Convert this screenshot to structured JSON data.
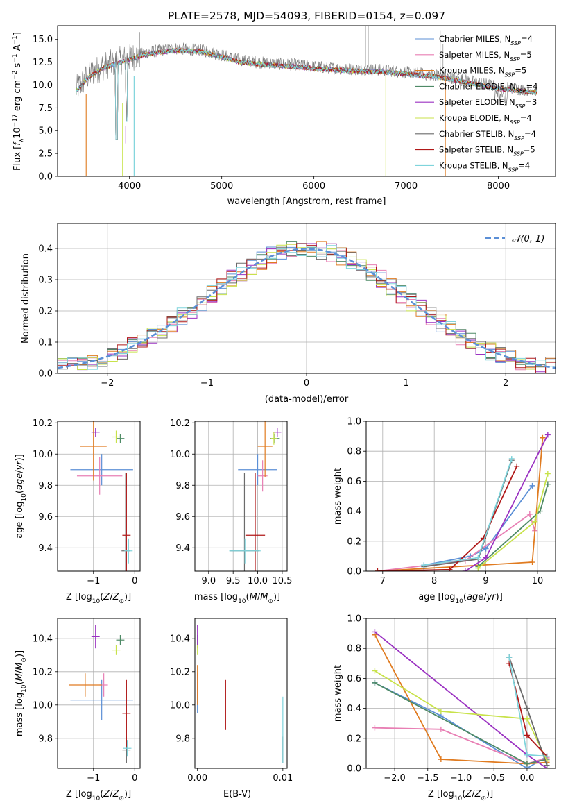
{
  "chart_data": [
    {
      "id": "spectrum",
      "type": "line",
      "title": "PLATE=2578, MJD=54093, FIBERID=0154, z=0.097",
      "xlabel": "wavelength [Angstrom, rest frame]",
      "ylabel": "Flux [f_λ 10^-17 erg cm^-2 s^-1 A^-1]",
      "xlim": [
        3220,
        8620
      ],
      "ylim": [
        0,
        16.5
      ],
      "xticks": [
        4000,
        5000,
        6000,
        7000,
        8000
      ],
      "yticks": [
        0.0,
        2.5,
        5.0,
        7.5,
        10.0,
        12.5,
        15.0
      ],
      "legend_position": "top-right",
      "series": [
        {
          "name": "Chabrier MILES, N_SSP=4",
          "color": "#5b8fd6"
        },
        {
          "name": "Salpeter MILES, N_SSP=5",
          "color": "#e87fb4"
        },
        {
          "name": "Kroupa MILES, N_SSP=5",
          "color": "#e07b20"
        },
        {
          "name": "Chabrier ELODIE, N_SSP=4",
          "color": "#4e8a66"
        },
        {
          "name": "Salpeter ELODIE, N_SSP=3",
          "color": "#9b32c2"
        },
        {
          "name": "Kroupa ELODIE, N_SSP=4",
          "color": "#c8e24a"
        },
        {
          "name": "Chabrier STELIB, N_SSP=4",
          "color": "#6b6b6b"
        },
        {
          "name": "Salpeter STELIB, N_SSP=5",
          "color": "#b01818"
        },
        {
          "name": "Kroupa STELIB, N_SSP=4",
          "color": "#7fd4dc"
        }
      ],
      "observed_continuum": {
        "x": [
          3420,
          3550,
          3700,
          3850,
          4000,
          4200,
          4500,
          4800,
          5000,
          5200,
          5500,
          5800,
          6000,
          6300,
          6600,
          6800,
          7000,
          7200,
          7400,
          7600,
          8000,
          8400
        ],
        "y": [
          9.5,
          11.0,
          12.0,
          12.5,
          13.0,
          13.6,
          14.0,
          13.8,
          13.3,
          12.7,
          12.4,
          12.2,
          12.0,
          11.8,
          11.7,
          11.6,
          11.4,
          11.2,
          11.0,
          10.6,
          9.8,
          9.4
        ]
      }
    },
    {
      "id": "residuals",
      "type": "line",
      "xlabel": "(data-model)/error",
      "ylabel": "Normed distribution",
      "xlim": [
        -2.5,
        2.5
      ],
      "ylim": [
        0,
        0.48
      ],
      "xticks": [
        -2,
        -1,
        0,
        1,
        2
      ],
      "yticks": [
        0.0,
        0.1,
        0.2,
        0.3,
        0.4
      ],
      "grid": true,
      "legend_position": "top-right",
      "reference_curve": {
        "name": "𝒩(0, 1)",
        "color": "#5b8fd6",
        "dashed": true
      }
    },
    {
      "id": "age-vs-Z",
      "type": "scatter",
      "xlabel": "Z [log10(Z/Z⊙)]",
      "ylabel": "age [log10(age/yr)]",
      "xlim": [
        -1.87,
        0.13
      ],
      "ylim": [
        9.25,
        10.21
      ],
      "xticks": [
        -1,
        0
      ],
      "xticklabels": [
        "−1",
        "0"
      ],
      "yticks": [
        9.4,
        9.6,
        9.8,
        10.0,
        10.2
      ],
      "grid": true,
      "points": [
        {
          "color": "#5b8fd6",
          "x": -0.8,
          "y": 9.9,
          "xerr": 0.76,
          "yerr": 0.1
        },
        {
          "color": "#e87fb4",
          "x": -0.85,
          "y": 9.86,
          "xerr": 0.55,
          "yerr": 0.12
        },
        {
          "color": "#e07b20",
          "x": -1.0,
          "y": 10.05,
          "xerr": 0.32,
          "yerr": 0.22
        },
        {
          "color": "#4e8a66",
          "x": -0.35,
          "y": 10.1,
          "xerr": 0.1,
          "yerr": 0.03
        },
        {
          "color": "#9b32c2",
          "x": -0.95,
          "y": 10.14,
          "xerr": 0.1,
          "yerr": 0.03
        },
        {
          "color": "#c8e24a",
          "x": -0.45,
          "y": 10.11,
          "xerr": 0.1,
          "yerr": 0.04
        },
        {
          "color": "#6b6b6b",
          "x": -0.22,
          "y": 9.38,
          "xerr": 0.1,
          "yerr": 0.5
        },
        {
          "color": "#b01818",
          "x": -0.2,
          "y": 9.48,
          "xerr": 0.1,
          "yerr": 0.4
        },
        {
          "color": "#7fd4dc",
          "x": -0.15,
          "y": 9.38,
          "xerr": 0.1,
          "yerr": 0.08
        }
      ]
    },
    {
      "id": "age-vs-mass",
      "type": "scatter",
      "xlabel": "mass [log10(M/M⊙)]",
      "ylabel": "",
      "xlim": [
        8.72,
        10.6
      ],
      "ylim": [
        9.25,
        10.21
      ],
      "xticks": [
        9,
        9.5,
        10,
        10.5
      ],
      "xticklabels": [
        "9.0",
        "9.5",
        "10.0",
        "10.5"
      ],
      "yticks": [
        9.4,
        9.6,
        9.8,
        10.0,
        10.2
      ],
      "grid": true,
      "points": [
        {
          "color": "#5b8fd6",
          "x": 10.0,
          "y": 9.9,
          "xerr": 0.4,
          "yerr": 0.1
        },
        {
          "color": "#e87fb4",
          "x": 10.1,
          "y": 9.86,
          "xerr": 0.1,
          "yerr": 0.1
        },
        {
          "color": "#e07b20",
          "x": 10.15,
          "y": 10.05,
          "xerr": 0.15,
          "yerr": 0.2
        },
        {
          "color": "#4e8a66",
          "x": 10.35,
          "y": 10.1,
          "xerr": 0.1,
          "yerr": 0.03
        },
        {
          "color": "#9b32c2",
          "x": 10.4,
          "y": 10.14,
          "xerr": 0.08,
          "yerr": 0.03
        },
        {
          "color": "#c8e24a",
          "x": 10.33,
          "y": 10.1,
          "xerr": 0.06,
          "yerr": 0.04
        },
        {
          "color": "#6b6b6b",
          "x": 9.73,
          "y": 9.38,
          "xerr": 0.3,
          "yerr": 0.5
        },
        {
          "color": "#b01818",
          "x": 9.95,
          "y": 9.48,
          "xerr": 0.2,
          "yerr": 0.4
        },
        {
          "color": "#7fd4dc",
          "x": 9.74,
          "y": 9.38,
          "xerr": 0.32,
          "yerr": 0.08
        }
      ]
    },
    {
      "id": "weight-vs-age",
      "type": "line",
      "xlabel": "age [log10(age/yr)]",
      "ylabel": "mass weight",
      "xlim": [
        6.68,
        10.35
      ],
      "ylim": [
        0,
        1
      ],
      "xticks": [
        7,
        8,
        9,
        10
      ],
      "yticks": [
        0.0,
        0.2,
        0.4,
        0.6,
        0.8,
        1.0
      ],
      "grid": true,
      "series": [
        {
          "color": "#5b8fd6",
          "x": [
            7.8,
            8.7,
            9.0,
            9.9
          ],
          "y": [
            0.04,
            0.1,
            0.15,
            0.57
          ]
        },
        {
          "color": "#e87fb4",
          "x": [
            6.9,
            8.6,
            9.85,
            9.95
          ],
          "y": [
            0.0,
            0.07,
            0.38,
            0.27
          ]
        },
        {
          "color": "#e07b20",
          "x": [
            6.9,
            9.9,
            10.1
          ],
          "y": [
            0.0,
            0.06,
            0.89
          ]
        },
        {
          "color": "#4e8a66",
          "x": [
            8.85,
            10.05,
            10.2
          ],
          "y": [
            0.03,
            0.4,
            0.58
          ]
        },
        {
          "color": "#9b32c2",
          "x": [
            8.6,
            9.0,
            10.2
          ],
          "y": [
            0.0,
            0.09,
            0.91
          ]
        },
        {
          "color": "#c8e24a",
          "x": [
            8.85,
            9.95,
            10.2
          ],
          "y": [
            0.02,
            0.33,
            0.65
          ]
        },
        {
          "color": "#6b6b6b",
          "x": [
            7.8,
            8.85,
            9.5
          ],
          "y": [
            0.03,
            0.08,
            0.74
          ]
        },
        {
          "color": "#b01818",
          "x": [
            6.9,
            8.3,
            8.95,
            9.6
          ],
          "y": [
            0.0,
            0.01,
            0.22,
            0.7
          ]
        },
        {
          "color": "#7fd4dc",
          "x": [
            7.8,
            8.85,
            9.5
          ],
          "y": [
            0.04,
            0.09,
            0.75
          ]
        }
      ]
    },
    {
      "id": "mass-vs-Z",
      "type": "scatter",
      "xlabel": "Z [log10(Z/Z⊙)]",
      "ylabel": "mass [log10(M/M⊙)]",
      "xlim": [
        -1.87,
        0.13
      ],
      "ylim": [
        9.62,
        10.52
      ],
      "xticks": [
        -1,
        0
      ],
      "xticklabels": [
        "−1",
        "0"
      ],
      "yticks": [
        9.8,
        10.0,
        10.2,
        10.4
      ],
      "grid": true,
      "points": [
        {
          "color": "#5b8fd6",
          "x": -0.8,
          "y": 10.03,
          "xerr": 0.76,
          "yerr": 0.12
        },
        {
          "color": "#e87fb4",
          "x": -0.75,
          "y": 10.12,
          "xerr": 0.1,
          "yerr": 0.07
        },
        {
          "color": "#e07b20",
          "x": -1.2,
          "y": 10.12,
          "xerr": 0.4,
          "yerr": 0.07
        },
        {
          "color": "#4e8a66",
          "x": -0.35,
          "y": 10.39,
          "xerr": 0.1,
          "yerr": 0.03
        },
        {
          "color": "#9b32c2",
          "x": -0.95,
          "y": 10.41,
          "xerr": 0.1,
          "yerr": 0.07
        },
        {
          "color": "#c8e24a",
          "x": -0.45,
          "y": 10.33,
          "xerr": 0.1,
          "yerr": 0.03
        },
        {
          "color": "#6b6b6b",
          "x": -0.2,
          "y": 9.73,
          "xerr": 0.1,
          "yerr": 0.08
        },
        {
          "color": "#b01818",
          "x": -0.2,
          "y": 9.95,
          "xerr": 0.1,
          "yerr": 0.2
        },
        {
          "color": "#7fd4dc",
          "x": -0.18,
          "y": 9.74,
          "xerr": 0.1,
          "yerr": 0.05
        }
      ]
    },
    {
      "id": "mass-vs-EBV",
      "type": "scatter",
      "xlabel": "E(B-V)",
      "ylabel": "",
      "xlim": [
        -0.0003,
        0.0105
      ],
      "ylim": [
        9.62,
        10.52
      ],
      "xticks": [
        0,
        0.01
      ],
      "xticklabels": [
        "0.00",
        "0.01"
      ],
      "yticks": [
        9.8,
        10.0,
        10.2,
        10.4
      ],
      "grid": false,
      "points": [
        {
          "color": "#5b8fd6",
          "x": 0.0,
          "y": 10.03,
          "xerr": 0,
          "yerr": 0.08
        },
        {
          "color": "#e87fb4",
          "x": 0.0,
          "y": 10.12,
          "xerr": 0,
          "yerr": 0.07
        },
        {
          "color": "#e07b20",
          "x": 0.0,
          "y": 10.12,
          "xerr": 0,
          "yerr": 0.12
        },
        {
          "color": "#4e8a66",
          "x": 0.0,
          "y": 10.39,
          "xerr": 0,
          "yerr": 0.03
        },
        {
          "color": "#9b32c2",
          "x": 0.0,
          "y": 10.41,
          "xerr": 0,
          "yerr": 0.07
        },
        {
          "color": "#c8e24a",
          "x": 0.0,
          "y": 10.33,
          "xerr": 0,
          "yerr": 0.03
        },
        {
          "color": "#6b6b6b",
          "x": 0.01,
          "y": 9.73,
          "xerr": 0,
          "yerr": 0.08
        },
        {
          "color": "#b01818",
          "x": 0.0033,
          "y": 10.0,
          "xerr": 0,
          "yerr": 0.15
        },
        {
          "color": "#7fd4dc",
          "x": 0.01,
          "y": 9.85,
          "xerr": 0,
          "yerr": 0.2
        }
      ]
    },
    {
      "id": "weight-vs-Z",
      "type": "line",
      "xlabel": "Z [log10(Z/Z⊙)]",
      "ylabel": "mass weight",
      "xlim": [
        -2.43,
        0.43
      ],
      "ylim": [
        0,
        1
      ],
      "xticks": [
        -2.0,
        -1.5,
        -1.0,
        -0.5,
        0.0
      ],
      "xticklabels": [
        "−2.0",
        "−1.5",
        "−1.0",
        "−0.5",
        "0.0"
      ],
      "yticks": [
        0.0,
        0.2,
        0.4,
        0.6,
        0.8,
        1.0
      ],
      "grid": true,
      "series": [
        {
          "color": "#5b8fd6",
          "x": [
            -2.3,
            -1.3,
            0.0,
            0.3
          ],
          "y": [
            0.57,
            0.35,
            0.0,
            0.08
          ]
        },
        {
          "color": "#e87fb4",
          "x": [
            -2.3,
            -1.3,
            0.0,
            0.3
          ],
          "y": [
            0.27,
            0.26,
            0.03,
            0.07
          ]
        },
        {
          "color": "#e07b20",
          "x": [
            -2.3,
            -1.3,
            0.0,
            0.3
          ],
          "y": [
            0.89,
            0.06,
            0.03,
            0.04
          ]
        },
        {
          "color": "#4e8a66",
          "x": [
            -2.3,
            0.0,
            0.3
          ],
          "y": [
            0.57,
            0.03,
            0.06
          ]
        },
        {
          "color": "#9b32c2",
          "x": [
            -2.3,
            0.0,
            0.3
          ],
          "y": [
            0.91,
            0.09,
            0.0
          ]
        },
        {
          "color": "#c8e24a",
          "x": [
            -2.3,
            -1.3,
            0.0,
            0.3
          ],
          "y": [
            0.65,
            0.38,
            0.33,
            0.05
          ]
        },
        {
          "color": "#6b6b6b",
          "x": [
            -0.27,
            0.0,
            0.3
          ],
          "y": [
            0.74,
            0.4,
            0.02
          ]
        },
        {
          "color": "#b01818",
          "x": [
            -0.27,
            0.0,
            0.3
          ],
          "y": [
            0.7,
            0.22,
            0.08
          ]
        },
        {
          "color": "#7fd4dc",
          "x": [
            -0.27,
            0.0,
            0.3
          ],
          "y": [
            0.74,
            0.09,
            0.08
          ]
        }
      ]
    }
  ]
}
